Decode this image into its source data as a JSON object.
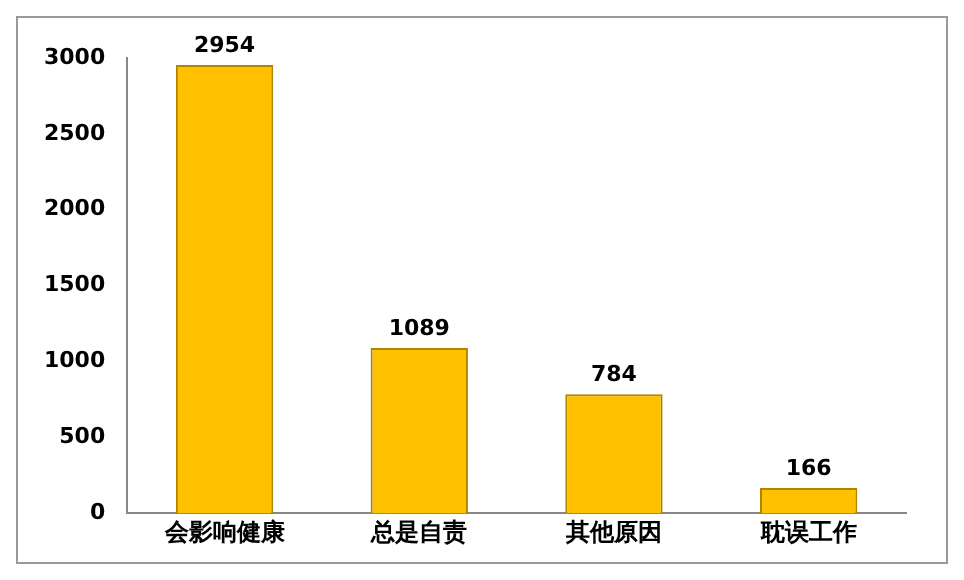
{
  "chart_data": {
    "type": "bar",
    "categories": [
      "会影响健康",
      "总是自责",
      "其他原因",
      "耽误工作"
    ],
    "values": [
      2954,
      1089,
      784,
      166
    ],
    "color": "#ffc000",
    "ylim": [
      0,
      3000
    ],
    "yticks": [
      0,
      500,
      1000,
      1500,
      2000,
      2500,
      3000
    ],
    "grid": false,
    "data_labels": true,
    "legend": false
  }
}
